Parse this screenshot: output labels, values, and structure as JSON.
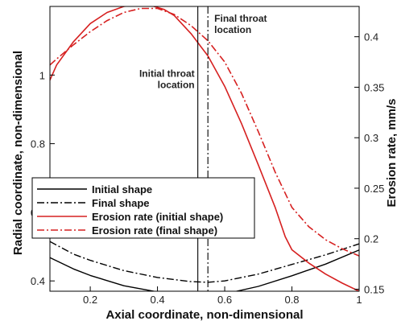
{
  "chart_data": {
    "type": "line",
    "xlabel": "Axial coordinate, non-dimensional",
    "ylabel_left": "Radial coordinate, non-dimensional",
    "ylabel_right": "Erosion rate, mm/s",
    "xlim": [
      0.08,
      1.0
    ],
    "ylim_left": [
      0.37,
      1.2
    ],
    "ylim_right": [
      0.148,
      0.43
    ],
    "x_ticks": [
      "0.2",
      "0.4",
      "0.6",
      "0.8",
      "1"
    ],
    "y_ticks_left": [
      "0.4",
      "0.6",
      "0.8",
      "1"
    ],
    "y_ticks_right": [
      "0.15",
      "0.2",
      "0.25",
      "0.3",
      "0.35",
      "0.4"
    ],
    "grid": false,
    "legend_position": "bottom-left",
    "annotations": [
      {
        "text": [
          "Initial throat",
          "location"
        ],
        "x": 0.52,
        "y_left": 0.995
      },
      {
        "text": [
          "Final throat",
          "location"
        ],
        "x": 0.55,
        "y_left": 1.155
      }
    ],
    "vlines": [
      {
        "name": "Initial throat location",
        "x": 0.52,
        "style": "solid"
      },
      {
        "name": "Final throat location",
        "x": 0.55,
        "style": "dashdot"
      }
    ],
    "series": [
      {
        "name": "Initial shape",
        "axis": "left",
        "color": "#000000",
        "style": "solid",
        "x": [
          0.08,
          0.15,
          0.2,
          0.3,
          0.4,
          0.5,
          0.55,
          0.6,
          0.7,
          0.8,
          0.9,
          1.0
        ],
        "y": [
          0.468,
          0.435,
          0.416,
          0.386,
          0.368,
          0.358,
          0.357,
          0.362,
          0.384,
          0.415,
          0.449,
          0.49
        ]
      },
      {
        "name": "Final shape",
        "axis": "left",
        "color": "#000000",
        "style": "dashdot",
        "x": [
          0.08,
          0.15,
          0.2,
          0.3,
          0.4,
          0.5,
          0.55,
          0.6,
          0.7,
          0.8,
          0.9,
          1.0
        ],
        "y": [
          0.515,
          0.478,
          0.46,
          0.43,
          0.41,
          0.398,
          0.396,
          0.4,
          0.42,
          0.448,
          0.476,
          0.508
        ]
      },
      {
        "name": "Erosion rate (initial shape)",
        "axis": "right",
        "color": "#d62020",
        "style": "solid",
        "x": [
          0.08,
          0.1,
          0.15,
          0.2,
          0.25,
          0.3,
          0.35,
          0.38,
          0.42,
          0.45,
          0.5,
          0.55,
          0.6,
          0.65,
          0.7,
          0.75,
          0.78,
          0.8,
          0.85,
          0.9,
          0.95,
          1.0
        ],
        "y": [
          0.357,
          0.372,
          0.395,
          0.413,
          0.424,
          0.43,
          0.432,
          0.431,
          0.427,
          0.421,
          0.403,
          0.381,
          0.351,
          0.314,
          0.273,
          0.231,
          0.202,
          0.189,
          0.176,
          0.165,
          0.156,
          0.148
        ]
      },
      {
        "name": "Erosion rate (final shape)",
        "axis": "right",
        "color": "#d62020",
        "style": "dashdot",
        "x": [
          0.08,
          0.1,
          0.15,
          0.2,
          0.25,
          0.3,
          0.35,
          0.4,
          0.45,
          0.5,
          0.55,
          0.6,
          0.65,
          0.7,
          0.75,
          0.8,
          0.85,
          0.9,
          0.95,
          1.0
        ],
        "y": [
          0.372,
          0.378,
          0.392,
          0.405,
          0.416,
          0.424,
          0.428,
          0.428,
          0.422,
          0.411,
          0.396,
          0.375,
          0.344,
          0.306,
          0.266,
          0.231,
          0.212,
          0.199,
          0.19,
          0.183
        ]
      }
    ]
  }
}
